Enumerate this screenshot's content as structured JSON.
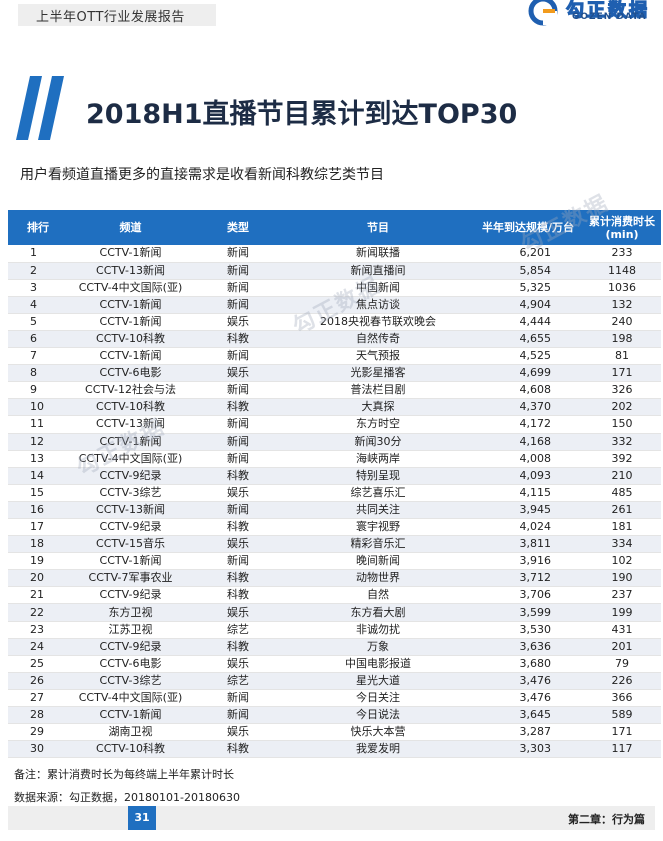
{
  "header": {
    "report_title": "上半年OTT行业发展报告"
  },
  "logo": {
    "cn": "勾正数据",
    "en": "GOZEN DATA"
  },
  "page_title": "2018H1直播节目累计到达TOP30",
  "subtitle": "用户看频道直播更多的直接需求是收看新闻科教综艺类节目",
  "table": {
    "headers": [
      "排行",
      "频道",
      "类型",
      "节目",
      "半年到达规模/万台",
      "累计消费时长\n(min)"
    ],
    "rows": [
      [
        "1",
        "CCTV-1新闻",
        "新闻",
        "新闻联播",
        "6,201",
        "233"
      ],
      [
        "2",
        "CCTV-13新闻",
        "新闻",
        "新闻直播间",
        "5,854",
        "1148"
      ],
      [
        "3",
        "CCTV-4中文国际(亚)",
        "新闻",
        "中国新闻",
        "5,325",
        "1036"
      ],
      [
        "4",
        "CCTV-1新闻",
        "新闻",
        "焦点访谈",
        "4,904",
        "132"
      ],
      [
        "5",
        "CCTV-1新闻",
        "娱乐",
        "2018央视春节联欢晚会",
        "4,444",
        "240"
      ],
      [
        "6",
        "CCTV-10科教",
        "科教",
        "自然传奇",
        "4,655",
        "198"
      ],
      [
        "7",
        "CCTV-1新闻",
        "新闻",
        "天气预报",
        "4,525",
        "81"
      ],
      [
        "8",
        "CCTV-6电影",
        "娱乐",
        "光影星播客",
        "4,699",
        "171"
      ],
      [
        "9",
        "CCTV-12社会与法",
        "新闻",
        "普法栏目剧",
        "4,608",
        "326"
      ],
      [
        "10",
        "CCTV-10科教",
        "科教",
        "大真探",
        "4,370",
        "202"
      ],
      [
        "11",
        "CCTV-13新闻",
        "新闻",
        "东方时空",
        "4,172",
        "150"
      ],
      [
        "12",
        "CCTV-1新闻",
        "新闻",
        "新闻30分",
        "4,168",
        "332"
      ],
      [
        "13",
        "CCTV-4中文国际(亚)",
        "新闻",
        "海峡两岸",
        "4,008",
        "392"
      ],
      [
        "14",
        "CCTV-9纪录",
        "科教",
        "特别呈现",
        "4,093",
        "210"
      ],
      [
        "15",
        "CCTV-3综艺",
        "娱乐",
        "综艺喜乐汇",
        "4,115",
        "485"
      ],
      [
        "16",
        "CCTV-13新闻",
        "新闻",
        "共同关注",
        "3,945",
        "261"
      ],
      [
        "17",
        "CCTV-9纪录",
        "科教",
        "寰宇视野",
        "4,024",
        "181"
      ],
      [
        "18",
        "CCTV-15音乐",
        "娱乐",
        "精彩音乐汇",
        "3,811",
        "334"
      ],
      [
        "19",
        "CCTV-1新闻",
        "新闻",
        "晚间新闻",
        "3,916",
        "102"
      ],
      [
        "20",
        "CCTV-7军事农业",
        "科教",
        "动物世界",
        "3,712",
        "190"
      ],
      [
        "21",
        "CCTV-9纪录",
        "科教",
        "自然",
        "3,706",
        "237"
      ],
      [
        "22",
        "东方卫视",
        "娱乐",
        "东方看大剧",
        "3,599",
        "199"
      ],
      [
        "23",
        "江苏卫视",
        "综艺",
        "非诚勿扰",
        "3,530",
        "431"
      ],
      [
        "24",
        "CCTV-9纪录",
        "科教",
        "万象",
        "3,636",
        "201"
      ],
      [
        "25",
        "CCTV-6电影",
        "娱乐",
        "中国电影报道",
        "3,680",
        "79"
      ],
      [
        "26",
        "CCTV-3综艺",
        "综艺",
        "星光大道",
        "3,476",
        "226"
      ],
      [
        "27",
        "CCTV-4中文国际(亚)",
        "新闻",
        "今日关注",
        "3,476",
        "366"
      ],
      [
        "28",
        "CCTV-1新闻",
        "新闻",
        "今日说法",
        "3,645",
        "589"
      ],
      [
        "29",
        "湖南卫视",
        "娱乐",
        "快乐大本营",
        "3,287",
        "171"
      ],
      [
        "30",
        "CCTV-10科教",
        "科教",
        "我爱发明",
        "3,303",
        "117"
      ]
    ]
  },
  "note": "备注：累计消费时长为每终端上半年累计时长",
  "source": "数据来源：勾正数据，20180101-20180630",
  "footer": {
    "page_number": "31",
    "chapter": "第二章：行为篇"
  },
  "colors": {
    "accent": "#1f6fc0",
    "title": "#1d2c45",
    "stripe": "#eceff5"
  }
}
